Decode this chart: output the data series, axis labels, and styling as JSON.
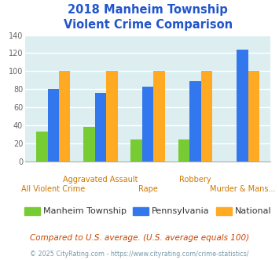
{
  "title_line1": "2018 Manheim Township",
  "title_line2": "Violent Crime Comparison",
  "title_color": "#2255cc",
  "categories": [
    "All Violent Crime",
    "Aggravated Assault",
    "Rape",
    "Robbery",
    "Murder & Mans..."
  ],
  "series": {
    "Manheim Township": [
      33,
      38,
      24,
      24,
      0
    ],
    "Pennsylvania": [
      80,
      76,
      83,
      89,
      124
    ],
    "National": [
      100,
      100,
      100,
      100,
      100
    ]
  },
  "bar_colors": {
    "Manheim Township": "#77cc33",
    "Pennsylvania": "#3377ee",
    "National": "#ffaa22"
  },
  "ylim": [
    0,
    140
  ],
  "yticks": [
    0,
    20,
    40,
    60,
    80,
    100,
    120,
    140
  ],
  "background_color": "#ddeef0",
  "grid_color": "#ffffff",
  "subtitle": "Compared to U.S. average. (U.S. average equals 100)",
  "subtitle_color": "#cc4400",
  "footer": "© 2025 CityRating.com - https://www.cityrating.com/crime-statistics/",
  "footer_color": "#7799aa",
  "xlabel_fontsize": 7.0,
  "xlabel_color": "#cc7700",
  "legend_fontsize": 8.0,
  "legend_text_color": "#333333",
  "subtitle_fontsize": 7.5,
  "footer_fontsize": 5.8,
  "title_fontsize": 10.5
}
